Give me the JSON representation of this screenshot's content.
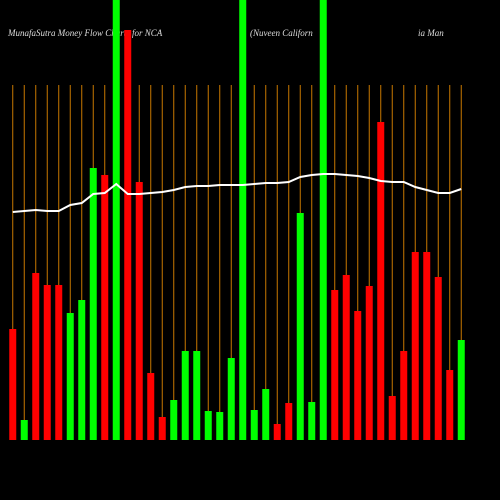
{
  "chart_data": {
    "type": "bar",
    "title": "MunafaSutra  Money Flow  Charts for NCA",
    "subtitle": "(Nuveen  Californ",
    "subtitle_tail": "ia  Man",
    "categories": [
      null,
      null,
      null,
      null,
      null,
      null,
      null,
      null,
      null,
      null,
      null,
      null,
      null,
      null,
      null,
      null,
      null,
      null,
      null,
      null,
      null,
      null,
      null,
      null,
      null,
      null,
      null,
      null,
      null,
      null,
      null,
      null,
      null,
      null,
      null,
      null,
      null,
      null,
      null,
      null
    ],
    "values": [
      111,
      20,
      167,
      155,
      155,
      127,
      140,
      272,
      265,
      440,
      410,
      258,
      67,
      23,
      40,
      89,
      89,
      29,
      28,
      82,
      440,
      30,
      51,
      16,
      37,
      227,
      38,
      440,
      150,
      165,
      129,
      154,
      318,
      44,
      89,
      188,
      188,
      163,
      70,
      100
    ],
    "colors": [
      "#ff0000",
      "#00ff00",
      "#ff0000",
      "#ff0000",
      "#ff0000",
      "#00ff00",
      "#00ff00",
      "#00ff00",
      "#ff0000",
      "#00ff00",
      "#ff0000",
      "#ff0000",
      "#ff0000",
      "#ff0000",
      "#00ff00",
      "#00ff00",
      "#00ff00",
      "#00ff00",
      "#00ff00",
      "#00ff00",
      "#00ff00",
      "#00ff00",
      "#00ff00",
      "#ff0000",
      "#ff0000",
      "#00ff00",
      "#00ff00",
      "#00ff00",
      "#ff0000",
      "#ff0000",
      "#ff0000",
      "#ff0000",
      "#ff0000",
      "#ff0000",
      "#ff0000",
      "#ff0000",
      "#ff0000",
      "#ff0000",
      "#ff0000",
      "#00ff00"
    ],
    "line": {
      "color": "#ffffff",
      "values": [
        228,
        229,
        230,
        229,
        229,
        235,
        237,
        246,
        247,
        256,
        246,
        246,
        247,
        248,
        250,
        253,
        254,
        254,
        255,
        255,
        255,
        256,
        257,
        257,
        258,
        263,
        265,
        266,
        266,
        265,
        264,
        262,
        259,
        258,
        258,
        253,
        250,
        247,
        247,
        251
      ]
    },
    "ylim": [
      0,
      440
    ],
    "grid_color": "#c87800"
  }
}
